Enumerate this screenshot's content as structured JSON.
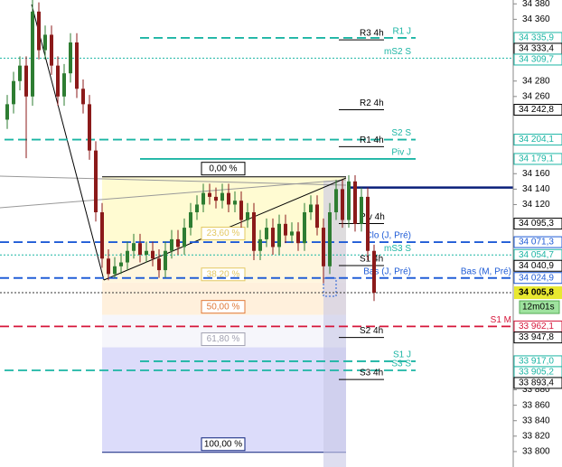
{
  "chart_data": {
    "type": "candlestick",
    "ylim": [
      33780,
      34385
    ],
    "yticks": [
      {
        "value": 34380,
        "label": "34 380"
      },
      {
        "value": 34360,
        "label": "34 360"
      },
      {
        "value": 34280,
        "label": "34 280"
      },
      {
        "value": 34260,
        "label": "34 260"
      },
      {
        "value": 34160,
        "label": "34 160"
      },
      {
        "value": 34140,
        "label": "34 140"
      },
      {
        "value": 34120,
        "label": "34 120"
      },
      {
        "value": 33880,
        "label": "33 880"
      },
      {
        "value": 33860,
        "label": "33 860"
      },
      {
        "value": 33840,
        "label": "33 840"
      },
      {
        "value": 33820,
        "label": "33 820"
      },
      {
        "value": 33800,
        "label": "33 800"
      }
    ],
    "up_color": "#2e7d32",
    "down_color": "#8b1a1a",
    "open": [
      34230,
      34250,
      34280,
      34300,
      34260,
      34370,
      34320,
      34340,
      34300,
      34260,
      34290,
      34330,
      34270,
      34250,
      34190,
      34110,
      34050,
      34030,
      34040,
      34045,
      34060,
      34070,
      34055,
      34060,
      34050,
      34035,
      34060,
      34075,
      34065,
      34090,
      34110,
      34120,
      34135,
      34130,
      34125,
      34135,
      34120,
      34125,
      34100,
      34110,
      34060,
      34075,
      34090,
      34065,
      34095,
      34080,
      34085,
      34070,
      34110,
      34120,
      34090,
      34040,
      34110,
      34140,
      34100,
      34150,
      34095,
      34130,
      34060
    ],
    "high": [
      34262,
      34292,
      34312,
      34312,
      34385,
      34382,
      34352,
      34352,
      34312,
      34302,
      34342,
      34342,
      34282,
      34262,
      34202,
      34122,
      34062,
      34052,
      34057,
      34072,
      34082,
      34082,
      34072,
      34072,
      34062,
      34072,
      34087,
      34087,
      34102,
      34122,
      34132,
      34147,
      34147,
      34142,
      34147,
      34147,
      34137,
      34137,
      34122,
      34122,
      34087,
      34102,
      34102,
      34107,
      34107,
      34097,
      34097,
      34122,
      34132,
      34132,
      34102,
      34122,
      34152,
      34152,
      34158,
      34158,
      34142,
      34142,
      34068
    ],
    "low": [
      34218,
      34238,
      34268,
      34180,
      34248,
      34308,
      34308,
      34288,
      34248,
      34248,
      34278,
      34258,
      34238,
      34178,
      34098,
      34038,
      34022,
      34025,
      34030,
      34035,
      34050,
      34045,
      34045,
      34040,
      34025,
      34025,
      34050,
      34055,
      34055,
      34080,
      34100,
      34110,
      34120,
      34115,
      34115,
      34110,
      34110,
      34090,
      34090,
      34048,
      34048,
      34065,
      34055,
      34055,
      34070,
      34070,
      34060,
      34060,
      34100,
      34080,
      34018,
      34030,
      34100,
      34090,
      34090,
      34085,
      34085,
      34048,
      33995
    ],
    "close": [
      34250,
      34280,
      34300,
      34260,
      34370,
      34320,
      34340,
      34300,
      34260,
      34290,
      34330,
      34270,
      34250,
      34190,
      34110,
      34050,
      34030,
      34040,
      34045,
      34060,
      34070,
      34055,
      34060,
      34050,
      34035,
      34060,
      34075,
      34065,
      34090,
      34110,
      34120,
      34135,
      34130,
      34125,
      34135,
      34120,
      34125,
      34100,
      34110,
      34060,
      34075,
      34090,
      34065,
      34095,
      34080,
      34085,
      34070,
      34110,
      34120,
      34090,
      34040,
      34110,
      34140,
      34100,
      34150,
      34095,
      34130,
      34060,
      34005.8
    ],
    "last_label": "34 005,8",
    "timer": "12m01s",
    "levels": [
      {
        "label": "R1 J",
        "value": 34335.9,
        "value_label": "34 335,9",
        "color": "#1bb5a4",
        "style": "dashed"
      },
      {
        "label": "R3 4h",
        "value": 34333.4,
        "value_label": "34 333,4",
        "color": "#000000",
        "style": "solid"
      },
      {
        "label": "mS2 S",
        "value": 34309.7,
        "value_label": "34 309,7",
        "color": "#1bb5a4",
        "style": "dotted"
      },
      {
        "label": "R2 4h",
        "value": 34242.8,
        "value_label": "34 242,8",
        "color": "#000000",
        "style": "solid"
      },
      {
        "label": "S2 S",
        "value": 34204.1,
        "value_label": "34 204,1",
        "color": "#1bb5a4",
        "style": "dashed"
      },
      {
        "label": "R1 4h",
        "value": 34195,
        "color": "#000000",
        "style": "solid"
      },
      {
        "label": "Piv J",
        "value": 34179.1,
        "value_label": "34 179,1",
        "color": "#1bb5a4",
        "style": "solid"
      },
      {
        "label": "Piv 4h",
        "value": 34095.3,
        "value_label": "34 095,3",
        "color": "#000000",
        "style": "solid"
      },
      {
        "label": "Clo (J, Pré)",
        "value": 34071.3,
        "value_label": "34 071,3",
        "color": "#1e5bd6",
        "style": "dashed"
      },
      {
        "label": "mS3 S",
        "value": 34054.7,
        "value_label": "34 054,7",
        "color": "#1bb5a4",
        "style": "dotted"
      },
      {
        "label": "S1 4h",
        "value": 34040.9,
        "value_label": "34 040,9",
        "color": "#000000",
        "style": "solid"
      },
      {
        "label": "Bas (J, Pré)",
        "value": 34024.9,
        "value_label": "34 024,9",
        "color": "#1e5bd6",
        "style": "dashed"
      },
      {
        "label": "Bas (M, Pré)",
        "value": 34024.9,
        "color": "#1e5bd6",
        "style": "dashed"
      },
      {
        "label": "S1 M",
        "value": 33962.1,
        "value_label": "33 962,1",
        "color": "#d6163a",
        "style": "dashed"
      },
      {
        "label": "S2 4h",
        "value": 33947.8,
        "value_label": "33 947,8",
        "color": "#000000",
        "style": "solid"
      },
      {
        "label": "S1 J",
        "value": 33917.0,
        "value_label": "33 917,0",
        "color": "#1bb5a4",
        "style": "dashed"
      },
      {
        "label": "S3 S",
        "value": 33905.2,
        "value_label": "33 905,2",
        "color": "#1bb5a4",
        "style": "dashed"
      },
      {
        "label": "S3 4h",
        "value": 33893.4,
        "value_label": "33 893,4",
        "color": "#000000",
        "style": "solid"
      }
    ],
    "lines": [
      {
        "value": 34142,
        "color": "#0a1f7a"
      }
    ],
    "fib": [
      {
        "label": "0,00 %",
        "value": 34156,
        "color": "#000000",
        "fill": "#fffbd2"
      },
      {
        "label": "23,60 %",
        "value": 34072,
        "color": "#e3c862",
        "fill": "#fff6de"
      },
      {
        "label": "38,20 %",
        "value": 34019,
        "color": "#e3c862",
        "fill": "#fff0dc"
      },
      {
        "label": "50,00 %",
        "value": 33977,
        "color": "#e07a3a",
        "fill": "#f6f6fb"
      },
      {
        "label": "61,80 %",
        "value": 33935,
        "color": "#a0a0b0",
        "fill": "#dcdcfa"
      },
      {
        "label": "100,00 %",
        "value": 33799,
        "color": "#0a1f7a"
      }
    ]
  }
}
